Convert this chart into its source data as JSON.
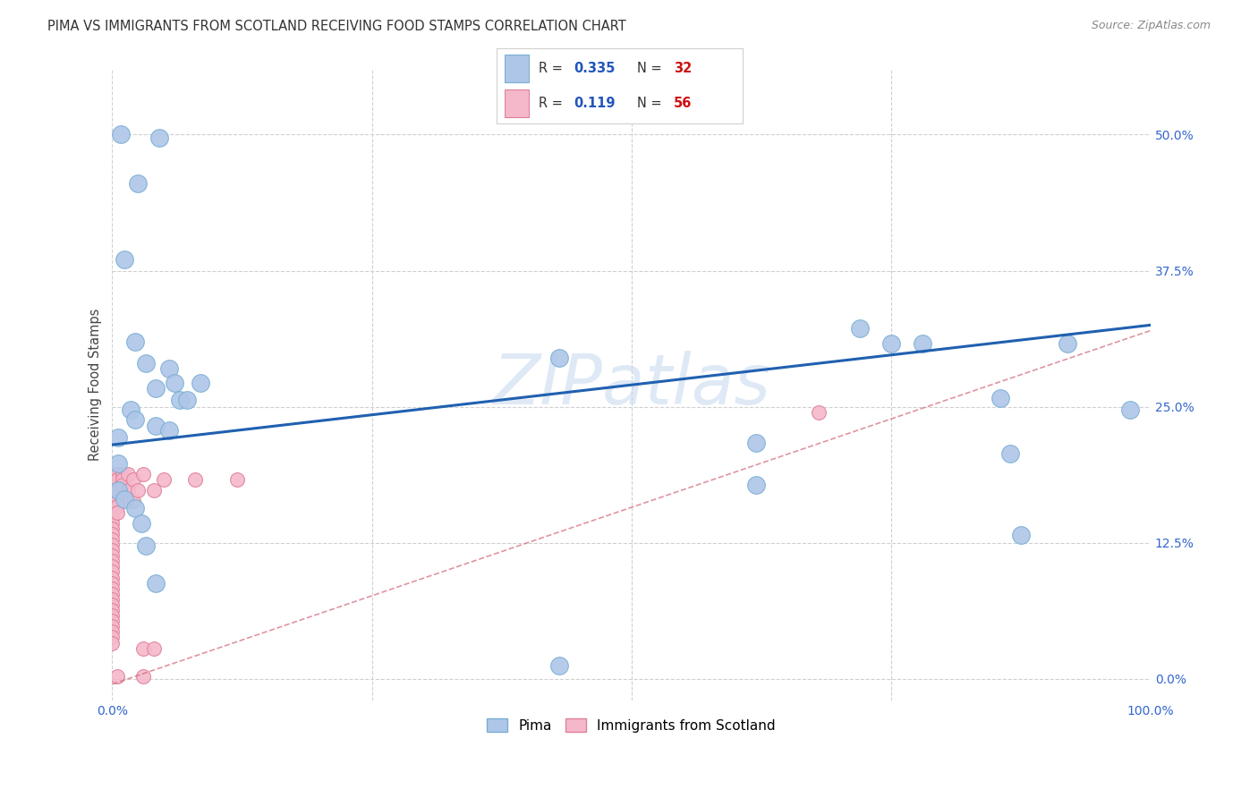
{
  "title": "PIMA VS IMMIGRANTS FROM SCOTLAND RECEIVING FOOD STAMPS CORRELATION CHART",
  "source": "Source: ZipAtlas.com",
  "ylabel": "Receiving Food Stamps",
  "xlim": [
    0.0,
    1.0
  ],
  "ylim": [
    -0.02,
    0.56
  ],
  "yticks": [
    0.0,
    0.125,
    0.25,
    0.375,
    0.5
  ],
  "ytick_labels": [
    "0.0%",
    "12.5%",
    "25.0%",
    "37.5%",
    "50.0%"
  ],
  "xticks": [
    0.0,
    0.25,
    0.5,
    0.75,
    1.0
  ],
  "xtick_labels": [
    "0.0%",
    "",
    "",
    "",
    "100.0%"
  ],
  "pima_color": "#aec6e8",
  "pima_edge": "#7aafd4",
  "scotland_color": "#f4b8ca",
  "scotland_edge": "#e08098",
  "pima_line_color": "#2060b0",
  "scotland_line_color": "#d06878",
  "watermark": "ZIPatlas",
  "background": "#ffffff",
  "grid_color": "#d0d0d0",
  "pima_points": [
    [
      0.008,
      0.5
    ],
    [
      0.025,
      0.455
    ],
    [
      0.045,
      0.497
    ],
    [
      0.012,
      0.385
    ],
    [
      0.022,
      0.31
    ],
    [
      0.032,
      0.29
    ],
    [
      0.055,
      0.285
    ],
    [
      0.042,
      0.267
    ],
    [
      0.06,
      0.272
    ],
    [
      0.065,
      0.256
    ],
    [
      0.072,
      0.256
    ],
    [
      0.085,
      0.272
    ],
    [
      0.018,
      0.247
    ],
    [
      0.022,
      0.238
    ],
    [
      0.042,
      0.232
    ],
    [
      0.055,
      0.228
    ],
    [
      0.006,
      0.222
    ],
    [
      0.006,
      0.198
    ],
    [
      0.006,
      0.173
    ],
    [
      0.012,
      0.165
    ],
    [
      0.022,
      0.157
    ],
    [
      0.028,
      0.143
    ],
    [
      0.032,
      0.122
    ],
    [
      0.042,
      0.088
    ],
    [
      0.43,
      0.295
    ],
    [
      0.62,
      0.217
    ],
    [
      0.72,
      0.322
    ],
    [
      0.75,
      0.308
    ],
    [
      0.78,
      0.308
    ],
    [
      0.855,
      0.258
    ],
    [
      0.865,
      0.207
    ],
    [
      0.875,
      0.132
    ],
    [
      0.92,
      0.308
    ],
    [
      0.98,
      0.247
    ],
    [
      0.62,
      0.178
    ],
    [
      0.43,
      0.012
    ]
  ],
  "scotland_points": [
    [
      0.0,
      0.188
    ],
    [
      0.0,
      0.183
    ],
    [
      0.0,
      0.178
    ],
    [
      0.0,
      0.173
    ],
    [
      0.0,
      0.168
    ],
    [
      0.0,
      0.163
    ],
    [
      0.0,
      0.158
    ],
    [
      0.0,
      0.153
    ],
    [
      0.0,
      0.148
    ],
    [
      0.0,
      0.143
    ],
    [
      0.0,
      0.138
    ],
    [
      0.0,
      0.133
    ],
    [
      0.0,
      0.128
    ],
    [
      0.0,
      0.123
    ],
    [
      0.0,
      0.118
    ],
    [
      0.0,
      0.113
    ],
    [
      0.0,
      0.108
    ],
    [
      0.0,
      0.103
    ],
    [
      0.0,
      0.098
    ],
    [
      0.0,
      0.093
    ],
    [
      0.0,
      0.088
    ],
    [
      0.0,
      0.083
    ],
    [
      0.0,
      0.078
    ],
    [
      0.0,
      0.073
    ],
    [
      0.0,
      0.068
    ],
    [
      0.0,
      0.063
    ],
    [
      0.0,
      0.058
    ],
    [
      0.0,
      0.053
    ],
    [
      0.0,
      0.048
    ],
    [
      0.0,
      0.043
    ],
    [
      0.0,
      0.038
    ],
    [
      0.0,
      0.033
    ],
    [
      0.005,
      0.188
    ],
    [
      0.005,
      0.183
    ],
    [
      0.005,
      0.173
    ],
    [
      0.005,
      0.163
    ],
    [
      0.005,
      0.158
    ],
    [
      0.005,
      0.153
    ],
    [
      0.01,
      0.188
    ],
    [
      0.01,
      0.183
    ],
    [
      0.01,
      0.178
    ],
    [
      0.015,
      0.188
    ],
    [
      0.015,
      0.173
    ],
    [
      0.02,
      0.183
    ],
    [
      0.02,
      0.163
    ],
    [
      0.025,
      0.173
    ],
    [
      0.03,
      0.188
    ],
    [
      0.03,
      0.028
    ],
    [
      0.04,
      0.173
    ],
    [
      0.04,
      0.028
    ],
    [
      0.05,
      0.183
    ],
    [
      0.08,
      0.183
    ],
    [
      0.12,
      0.183
    ],
    [
      0.68,
      0.245
    ],
    [
      0.005,
      0.002
    ],
    [
      0.03,
      0.002
    ]
  ],
  "pima_line": [
    0.0,
    1.0,
    0.215,
    0.325
  ],
  "scotland_line": [
    0.0,
    1.0,
    -0.005,
    0.32
  ]
}
